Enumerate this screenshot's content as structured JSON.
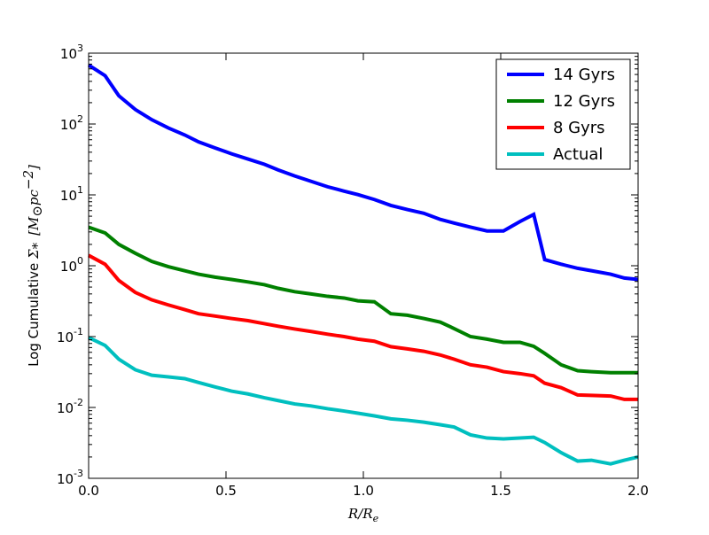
{
  "chart_data": {
    "type": "line",
    "title": "",
    "xlabel": "R/R_e",
    "xlabel_parts": {
      "main": "R/R",
      "sub": "e"
    },
    "ylabel": "Log Cumulative Σ_* [M_⊙ pc^-2]",
    "ylabel_parts": {
      "text": "Log Cumulative ",
      "sym": "Σ",
      "sym_sub": "*",
      "unit_open": "[M",
      "unit_sub": "⊙",
      "unit_mid": "pc",
      "unit_sup": "−2",
      "unit_close": "]"
    },
    "xlim": [
      0.0,
      2.0
    ],
    "ylim": [
      0.001,
      1000
    ],
    "yscale": "log",
    "grid": false,
    "legend_position": "top-right",
    "x_ticks": [
      {
        "value": 0.0,
        "label": "0.0"
      },
      {
        "value": 0.5,
        "label": "0.5"
      },
      {
        "value": 1.0,
        "label": "1.0"
      },
      {
        "value": 1.5,
        "label": "1.5"
      },
      {
        "value": 2.0,
        "label": "2.0"
      }
    ],
    "y_ticks": [
      {
        "value": 0.001,
        "exp": "-3"
      },
      {
        "value": 0.01,
        "exp": "-2"
      },
      {
        "value": 0.1,
        "exp": "-1"
      },
      {
        "value": 1,
        "exp": "0"
      },
      {
        "value": 10,
        "exp": "1"
      },
      {
        "value": 100,
        "exp": "2"
      },
      {
        "value": 1000,
        "exp": "3"
      }
    ],
    "tick_base": "10",
    "x": [
      0.0,
      0.06,
      0.11,
      0.17,
      0.23,
      0.29,
      0.35,
      0.4,
      0.46,
      0.52,
      0.58,
      0.64,
      0.69,
      0.75,
      0.81,
      0.87,
      0.93,
      0.98,
      1.04,
      1.1,
      1.16,
      1.22,
      1.28,
      1.33,
      1.39,
      1.45,
      1.51,
      1.57,
      1.62,
      1.66,
      1.72,
      1.78,
      1.83,
      1.9,
      1.95,
      2.0
    ],
    "series": [
      {
        "name": "14 Gyrs",
        "color": "#0000ff",
        "values": [
          680,
          480,
          250,
          160,
          115,
          88,
          70,
          56,
          46,
          38,
          32,
          27,
          22.5,
          18.5,
          15.5,
          13,
          11.3,
          10.1,
          8.6,
          7.1,
          6.2,
          5.5,
          4.5,
          4.0,
          3.5,
          3.1,
          3.1,
          4.2,
          5.3,
          1.22,
          1.05,
          0.92,
          0.85,
          0.76,
          0.67,
          0.64
        ]
      },
      {
        "name": "12 Gyrs",
        "color": "#008000",
        "values": [
          3.5,
          2.9,
          2.0,
          1.5,
          1.15,
          0.97,
          0.85,
          0.76,
          0.69,
          0.64,
          0.59,
          0.54,
          0.48,
          0.43,
          0.4,
          0.37,
          0.35,
          0.32,
          0.31,
          0.21,
          0.2,
          0.18,
          0.16,
          0.13,
          0.1,
          0.092,
          0.083,
          0.083,
          0.073,
          0.058,
          0.04,
          0.033,
          0.032,
          0.031,
          0.031,
          0.031
        ]
      },
      {
        "name": "8 Gyrs",
        "color": "#ff0000",
        "values": [
          1.4,
          1.05,
          0.62,
          0.42,
          0.33,
          0.28,
          0.24,
          0.21,
          0.195,
          0.18,
          0.168,
          0.152,
          0.14,
          0.128,
          0.118,
          0.108,
          0.1,
          0.092,
          0.086,
          0.072,
          0.067,
          0.062,
          0.055,
          0.048,
          0.04,
          0.037,
          0.032,
          0.03,
          0.028,
          0.022,
          0.019,
          0.015,
          0.0148,
          0.0145,
          0.013,
          0.013
        ]
      },
      {
        "name": "Actual",
        "color": "#00bfbf",
        "values": [
          0.097,
          0.075,
          0.048,
          0.034,
          0.0285,
          0.027,
          0.0255,
          0.0225,
          0.0195,
          0.017,
          0.0155,
          0.0137,
          0.0125,
          0.0112,
          0.0105,
          0.0096,
          0.0089,
          0.0083,
          0.0076,
          0.0069,
          0.0066,
          0.0062,
          0.0057,
          0.0053,
          0.0041,
          0.0037,
          0.0036,
          0.0037,
          0.0038,
          0.0032,
          0.0023,
          0.00175,
          0.0018,
          0.0016,
          0.0018,
          0.002
        ]
      }
    ]
  }
}
